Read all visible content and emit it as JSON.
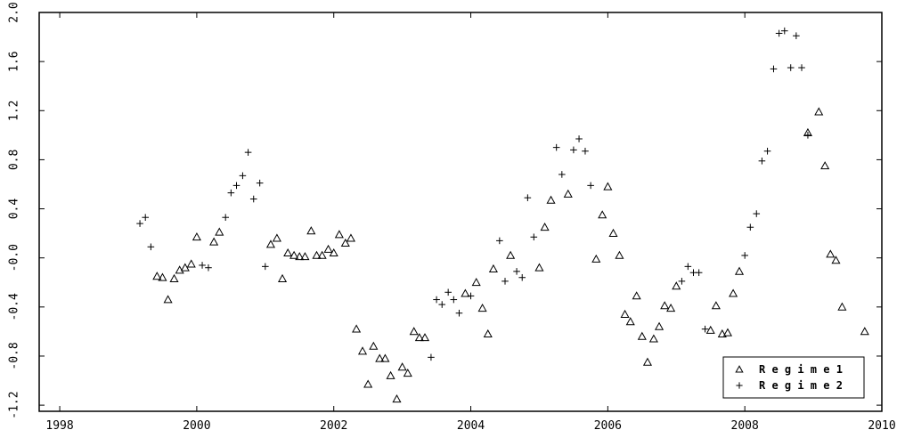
{
  "chart_data": {
    "type": "scatter",
    "title": "",
    "xlabel": "",
    "ylabel": "",
    "xlim": [
      1997.7,
      2010
    ],
    "ylim": [
      -1.25,
      2.0
    ],
    "x_ticks": [
      1998,
      2000,
      2002,
      2004,
      2006,
      2008,
      2010
    ],
    "x_tick_labels": [
      "1998",
      "2000",
      "2002",
      "2004",
      "2006",
      "2008",
      "2010"
    ],
    "y_ticks": [
      -1.2,
      -0.8,
      -0.4,
      0.0,
      0.4,
      0.8,
      1.2,
      1.6,
      2.0
    ],
    "y_tick_labels": [
      "-1.2",
      "-0.8",
      "-0.4",
      "-0.0",
      "0.4",
      "0.8",
      "1.2",
      "1.6",
      "2.0"
    ],
    "grid": false,
    "legend": {
      "position": "bottom-right"
    },
    "series": [
      {
        "name": "Regime 1",
        "marker": "triangle",
        "points": [
          [
            1999.42,
            -0.15
          ],
          [
            1999.5,
            -0.16
          ],
          [
            1999.58,
            -0.34
          ],
          [
            1999.67,
            -0.17
          ],
          [
            1999.75,
            -0.1
          ],
          [
            1999.83,
            -0.08
          ],
          [
            1999.92,
            -0.05
          ],
          [
            2000.0,
            0.17
          ],
          [
            2000.25,
            0.13
          ],
          [
            2000.33,
            0.21
          ],
          [
            2001.08,
            0.11
          ],
          [
            2001.17,
            0.16
          ],
          [
            2001.25,
            -0.17
          ],
          [
            2001.33,
            0.04
          ],
          [
            2001.42,
            0.02
          ],
          [
            2001.5,
            0.01
          ],
          [
            2001.58,
            0.01
          ],
          [
            2001.67,
            0.22
          ],
          [
            2001.75,
            0.02
          ],
          [
            2001.83,
            0.02
          ],
          [
            2001.92,
            0.07
          ],
          [
            2002.0,
            0.04
          ],
          [
            2002.08,
            0.19
          ],
          [
            2002.17,
            0.12
          ],
          [
            2002.25,
            0.16
          ],
          [
            2002.33,
            -0.58
          ],
          [
            2002.42,
            -0.76
          ],
          [
            2002.5,
            -1.03
          ],
          [
            2002.58,
            -0.72
          ],
          [
            2002.67,
            -0.82
          ],
          [
            2002.75,
            -0.82
          ],
          [
            2002.83,
            -0.96
          ],
          [
            2002.92,
            -1.15
          ],
          [
            2003.0,
            -0.89
          ],
          [
            2003.08,
            -0.94
          ],
          [
            2003.17,
            -0.6
          ],
          [
            2003.25,
            -0.65
          ],
          [
            2003.33,
            -0.65
          ],
          [
            2003.92,
            -0.29
          ],
          [
            2004.08,
            -0.2
          ],
          [
            2004.17,
            -0.41
          ],
          [
            2004.25,
            -0.62
          ],
          [
            2004.33,
            -0.09
          ],
          [
            2004.58,
            0.02
          ],
          [
            2005.0,
            -0.08
          ],
          [
            2005.08,
            0.25
          ],
          [
            2005.17,
            0.47
          ],
          [
            2005.42,
            0.52
          ],
          [
            2005.83,
            -0.01
          ],
          [
            2005.92,
            0.35
          ],
          [
            2006.0,
            0.58
          ],
          [
            2006.08,
            0.2
          ],
          [
            2006.17,
            0.02
          ],
          [
            2006.25,
            -0.46
          ],
          [
            2006.33,
            -0.52
          ],
          [
            2006.42,
            -0.31
          ],
          [
            2006.5,
            -0.64
          ],
          [
            2006.58,
            -0.85
          ],
          [
            2006.67,
            -0.66
          ],
          [
            2006.75,
            -0.56
          ],
          [
            2006.83,
            -0.39
          ],
          [
            2006.92,
            -0.41
          ],
          [
            2007.0,
            -0.23
          ],
          [
            2007.5,
            -0.59
          ],
          [
            2007.58,
            -0.39
          ],
          [
            2007.67,
            -0.62
          ],
          [
            2007.75,
            -0.61
          ],
          [
            2007.83,
            -0.29
          ],
          [
            2007.92,
            -0.11
          ],
          [
            2008.92,
            1.02
          ],
          [
            2009.08,
            1.19
          ],
          [
            2009.17,
            0.75
          ],
          [
            2009.25,
            0.03
          ],
          [
            2009.33,
            -0.02
          ],
          [
            2009.42,
            -0.4
          ],
          [
            2009.75,
            -0.6
          ]
        ]
      },
      {
        "name": "Regime 2",
        "marker": "plus",
        "points": [
          [
            1999.17,
            0.28
          ],
          [
            1999.25,
            0.33
          ],
          [
            1999.33,
            0.09
          ],
          [
            2000.08,
            -0.06
          ],
          [
            2000.17,
            -0.08
          ],
          [
            2000.42,
            0.33
          ],
          [
            2000.5,
            0.53
          ],
          [
            2000.58,
            0.59
          ],
          [
            2000.67,
            0.67
          ],
          [
            2000.75,
            0.86
          ],
          [
            2000.83,
            0.48
          ],
          [
            2000.92,
            0.61
          ],
          [
            2001.0,
            -0.07
          ],
          [
            2003.42,
            -0.81
          ],
          [
            2003.5,
            -0.34
          ],
          [
            2003.58,
            -0.38
          ],
          [
            2003.67,
            -0.28
          ],
          [
            2003.75,
            -0.34
          ],
          [
            2003.83,
            -0.45
          ],
          [
            2004.0,
            -0.31
          ],
          [
            2004.42,
            0.14
          ],
          [
            2004.5,
            -0.19
          ],
          [
            2004.67,
            -0.11
          ],
          [
            2004.75,
            -0.16
          ],
          [
            2004.83,
            0.49
          ],
          [
            2004.92,
            0.17
          ],
          [
            2005.25,
            0.9
          ],
          [
            2005.33,
            0.68
          ],
          [
            2005.5,
            0.88
          ],
          [
            2005.58,
            0.97
          ],
          [
            2005.67,
            0.87
          ],
          [
            2005.75,
            0.59
          ],
          [
            2007.08,
            -0.19
          ],
          [
            2007.17,
            -0.07
          ],
          [
            2007.25,
            -0.12
          ],
          [
            2007.33,
            -0.12
          ],
          [
            2007.42,
            -0.58
          ],
          [
            2008.0,
            0.02
          ],
          [
            2008.08,
            0.25
          ],
          [
            2008.17,
            0.36
          ],
          [
            2008.25,
            0.79
          ],
          [
            2008.33,
            0.87
          ],
          [
            2008.42,
            1.54
          ],
          [
            2008.5,
            1.83
          ],
          [
            2008.58,
            1.85
          ],
          [
            2008.67,
            1.55
          ],
          [
            2008.75,
            1.81
          ],
          [
            2008.83,
            1.55
          ],
          [
            2008.92,
            1.0
          ]
        ]
      }
    ]
  }
}
